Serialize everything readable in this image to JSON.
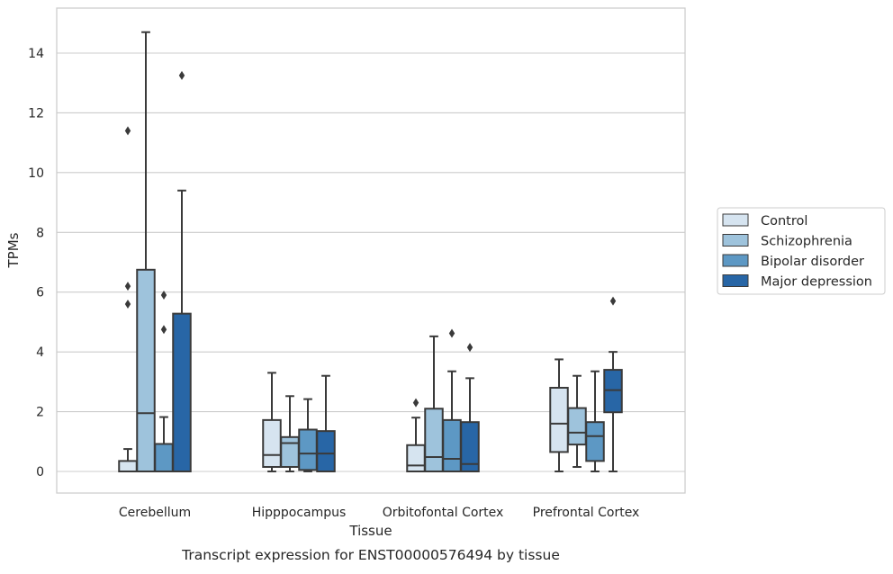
{
  "chart_data": {
    "type": "boxplot",
    "xlabel": "Tissue",
    "ylabel": "TPMs",
    "caption": "Transcript expression for ENST00000576494 by tissue",
    "categories": [
      "Cerebellum",
      "Hipppocampus",
      "Orbitofontal Cortex",
      "Prefrontal Cortex"
    ],
    "ylim": [
      -0.7,
      15.5
    ],
    "yticks": [
      0,
      2,
      4,
      6,
      8,
      10,
      12,
      14
    ],
    "grid": "horizontal",
    "legend_position": "right",
    "series": [
      {
        "name": "Control",
        "color": "#d6e4f0",
        "boxes": [
          {
            "whisker_low": 0,
            "q1": 0,
            "median": 0,
            "q3": 0.35,
            "whisker_high": 0.75,
            "outliers": [
              11.4,
              6.2,
              5.6
            ]
          },
          {
            "whisker_low": 0,
            "q1": 0.15,
            "median": 0.55,
            "q3": 1.72,
            "whisker_high": 3.3,
            "outliers": []
          },
          {
            "whisker_low": 0,
            "q1": 0,
            "median": 0.2,
            "q3": 0.88,
            "whisker_high": 1.8,
            "outliers": [
              2.3
            ]
          },
          {
            "whisker_low": 0,
            "q1": 0.65,
            "median": 1.6,
            "q3": 2.8,
            "whisker_high": 3.75,
            "outliers": []
          }
        ]
      },
      {
        "name": "Schizophrenia",
        "color": "#9ec3dc",
        "boxes": [
          {
            "whisker_low": 0,
            "q1": 0,
            "median": 1.95,
            "q3": 6.75,
            "whisker_high": 14.7,
            "outliers": []
          },
          {
            "whisker_low": 0,
            "q1": 0.15,
            "median": 0.95,
            "q3": 1.15,
            "whisker_high": 2.52,
            "outliers": []
          },
          {
            "whisker_low": 0,
            "q1": 0,
            "median": 0.48,
            "q3": 2.1,
            "whisker_high": 4.52,
            "outliers": []
          },
          {
            "whisker_low": 0.15,
            "q1": 0.9,
            "median": 1.3,
            "q3": 2.12,
            "whisker_high": 3.2,
            "outliers": []
          }
        ]
      },
      {
        "name": "Bipolar disorder",
        "color": "#5d98c4",
        "boxes": [
          {
            "whisker_low": 0,
            "q1": 0,
            "median": 0,
            "q3": 0.92,
            "whisker_high": 1.82,
            "outliers": [
              5.9,
              4.75
            ]
          },
          {
            "whisker_low": 0,
            "q1": 0.05,
            "median": 0.6,
            "q3": 1.4,
            "whisker_high": 2.42,
            "outliers": []
          },
          {
            "whisker_low": 0,
            "q1": 0,
            "median": 0.42,
            "q3": 1.72,
            "whisker_high": 3.35,
            "outliers": [
              4.62
            ]
          },
          {
            "whisker_low": 0,
            "q1": 0.35,
            "median": 1.18,
            "q3": 1.65,
            "whisker_high": 3.35,
            "outliers": []
          }
        ]
      },
      {
        "name": "Major depression",
        "color": "#2866a6",
        "boxes": [
          {
            "whisker_low": 0,
            "q1": 0,
            "median": 0,
            "q3": 5.28,
            "whisker_high": 9.4,
            "outliers": [
              13.25
            ]
          },
          {
            "whisker_low": 0,
            "q1": 0,
            "median": 0.6,
            "q3": 1.35,
            "whisker_high": 3.2,
            "outliers": []
          },
          {
            "whisker_low": 0,
            "q1": 0,
            "median": 0.25,
            "q3": 1.65,
            "whisker_high": 3.12,
            "outliers": [
              4.15
            ]
          },
          {
            "whisker_low": 0,
            "q1": 1.98,
            "median": 2.72,
            "q3": 3.4,
            "whisker_high": 4.0,
            "outliers": [
              5.7
            ]
          }
        ]
      }
    ]
  }
}
